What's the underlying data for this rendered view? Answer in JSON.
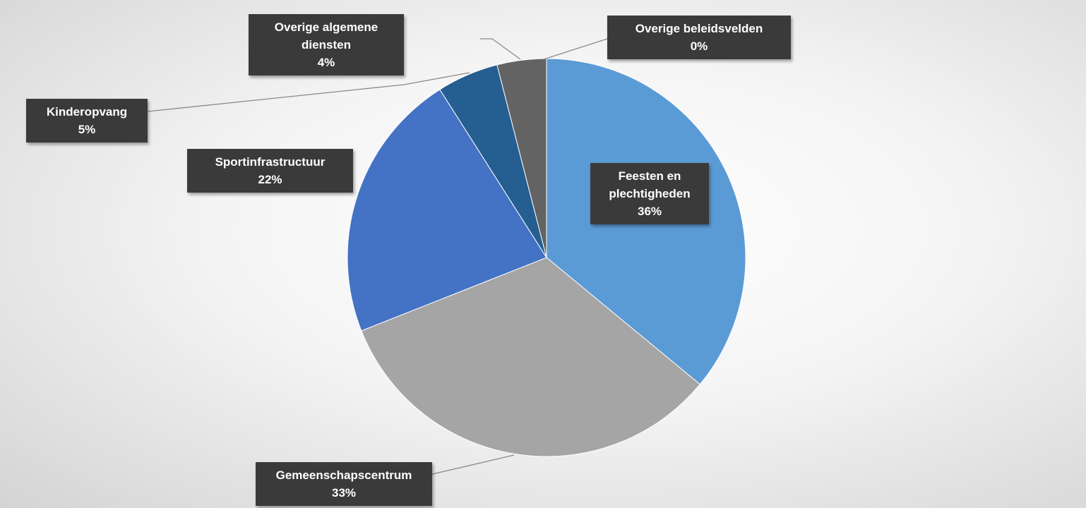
{
  "chart_data": {
    "type": "pie",
    "categories": [
      "Feesten en plechtigheden",
      "Gemeenschapscentrum",
      "Sportinfrastructuur",
      "Kinderopvang",
      "Overige algemene diensten",
      "Overige beleidsvelden"
    ],
    "values": [
      36,
      33,
      22,
      5,
      4,
      0
    ],
    "value_labels": [
      "36%",
      "33%",
      "22%",
      "5%",
      "4%",
      "0%"
    ],
    "colors": [
      "#5b9bd5",
      "#a5a5a5",
      "#4472c4",
      "#255e91",
      "#636363",
      "#264478"
    ]
  }
}
